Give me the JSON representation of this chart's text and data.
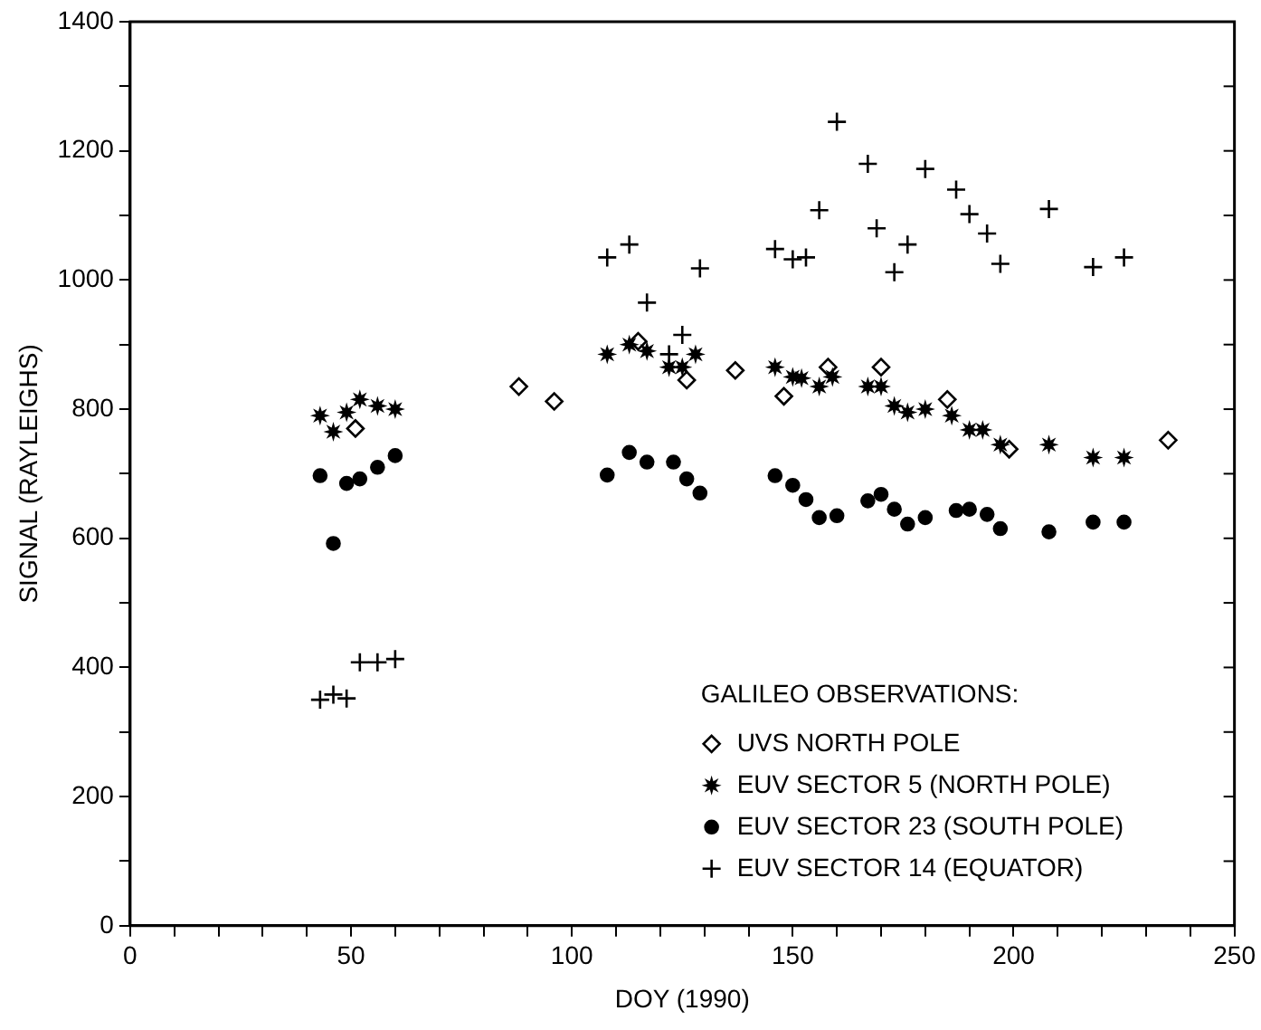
{
  "chart_data": {
    "type": "scatter",
    "xlabel": "DOY (1990)",
    "ylabel": "SIGNAL (RAYLEIGHS)",
    "legend_title": "GALILEO OBSERVATIONS:",
    "legend": "bottom right",
    "grid": false,
    "xlim": [
      0,
      250
    ],
    "ylim": [
      0,
      1400
    ],
    "xticks": [
      0,
      {
        "value": 10,
        "label": null
      },
      {
        "value": 20,
        "label": null
      },
      {
        "value": 30,
        "label": null
      },
      {
        "value": 40,
        "label": null
      },
      50,
      {
        "value": 60,
        "label": null
      },
      {
        "value": 70,
        "label": null
      },
      {
        "value": 80,
        "label": null
      },
      {
        "value": 90,
        "label": null
      },
      100,
      {
        "value": 110,
        "label": null
      },
      {
        "value": 120,
        "label": null
      },
      {
        "value": 130,
        "label": null
      },
      {
        "value": 140,
        "label": null
      },
      150,
      {
        "value": 160,
        "label": null
      },
      {
        "value": 170,
        "label": null
      },
      {
        "value": 180,
        "label": null
      },
      {
        "value": 190,
        "label": null
      },
      200,
      {
        "value": 210,
        "label": null
      },
      {
        "value": 220,
        "label": null
      },
      {
        "value": 230,
        "label": null
      },
      {
        "value": 240,
        "label": null
      },
      250
    ],
    "yticks": [
      0,
      {
        "value": 100,
        "label": null
      },
      200,
      {
        "value": 300,
        "label": null
      },
      400,
      {
        "value": 500,
        "label": null
      },
      600,
      {
        "value": 700,
        "label": null
      },
      800,
      {
        "value": 900,
        "label": null
      },
      1000,
      {
        "value": 1100,
        "label": null
      },
      1200,
      {
        "value": 1300,
        "label": null
      },
      1400
    ],
    "series": [
      {
        "name": "UVS NORTH POLE",
        "color": "#000000",
        "marker": "diamond",
        "x": [
          51,
          88,
          96,
          115,
          126,
          137,
          148,
          158,
          170,
          185,
          199,
          235
        ],
        "values": [
          770,
          835,
          812,
          905,
          845,
          860,
          820,
          865,
          865,
          815,
          738,
          752
        ]
      },
      {
        "name": "EUV SECTOR 5 (NORTH POLE)",
        "color": "#000000",
        "marker": "star",
        "x": [
          43,
          46,
          49,
          52,
          56,
          60,
          108,
          113,
          117,
          122,
          125,
          128,
          146,
          150,
          152,
          156,
          159,
          167,
          170,
          173,
          176,
          180,
          186,
          190,
          193,
          197,
          208,
          218,
          225
        ],
        "values": [
          790,
          765,
          795,
          815,
          805,
          800,
          885,
          900,
          890,
          865,
          865,
          885,
          865,
          850,
          848,
          835,
          850,
          835,
          835,
          805,
          795,
          800,
          790,
          768,
          768,
          745,
          745,
          725,
          725
        ]
      },
      {
        "name": "EUV SECTOR 23 (SOUTH POLE)",
        "color": "#000000",
        "marker": "circle",
        "x": [
          43,
          46,
          49,
          52,
          56,
          60,
          108,
          113,
          117,
          123,
          126,
          129,
          146,
          150,
          153,
          156,
          160,
          167,
          170,
          173,
          176,
          180,
          187,
          190,
          194,
          197,
          208,
          218,
          225
        ],
        "values": [
          697,
          592,
          685,
          692,
          710,
          728,
          698,
          733,
          718,
          718,
          692,
          670,
          697,
          682,
          660,
          632,
          635,
          658,
          668,
          645,
          622,
          632,
          643,
          645,
          637,
          615,
          610,
          625,
          625
        ]
      },
      {
        "name": "EUV SECTOR 14 (EQUATOR)",
        "color": "#000000",
        "marker": "cross",
        "x": [
          43,
          46,
          49,
          52,
          56,
          60,
          108,
          113,
          117,
          122,
          125,
          129,
          146,
          150,
          153,
          156,
          160,
          167,
          169,
          173,
          176,
          180,
          187,
          190,
          194,
          197,
          208,
          218,
          225
        ],
        "values": [
          350,
          358,
          352,
          408,
          408,
          413,
          1035,
          1055,
          965,
          885,
          915,
          1018,
          1048,
          1032,
          1035,
          1108,
          1245,
          1180,
          1080,
          1012,
          1055,
          1172,
          1140,
          1102,
          1072,
          1025,
          1110,
          1020,
          1035
        ]
      }
    ]
  }
}
